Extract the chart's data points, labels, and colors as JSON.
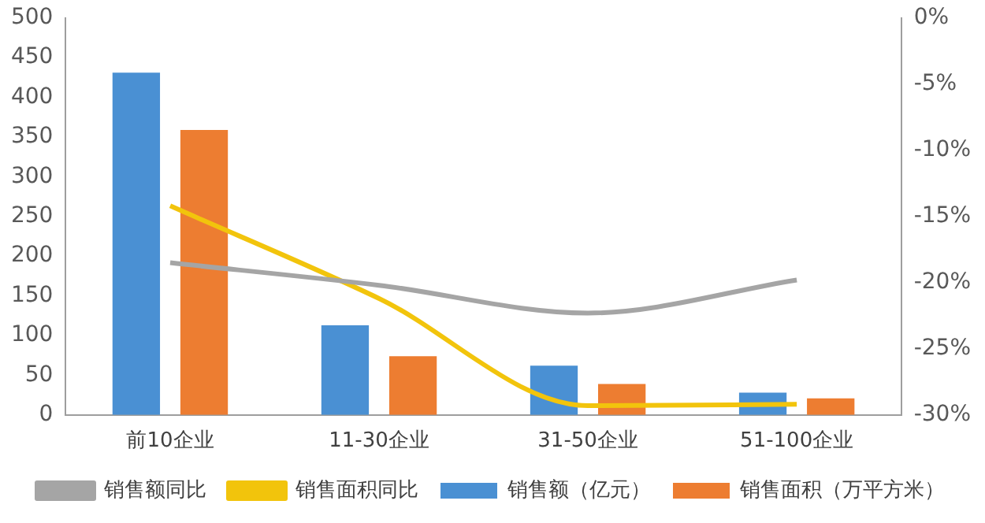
{
  "chart_data": {
    "type": "bar",
    "categories": [
      "前10企业",
      "11-30企业",
      "31-50企业",
      "51-100企业"
    ],
    "series": [
      {
        "name": "销售额（亿元）",
        "color": "#4a90d3",
        "values": [
          431,
          113,
          62,
          28
        ]
      },
      {
        "name": "销售面积（万平方米）",
        "color": "#ed7d31",
        "values": [
          359,
          74,
          39,
          21
        ]
      },
      {
        "name": "销售额同比",
        "type": "line",
        "axis": "y2",
        "color": "#a5a5a5",
        "values": [
          -18.5,
          -20.2,
          -22.3,
          -19.8
        ]
      },
      {
        "name": "销售面积同比",
        "type": "line",
        "axis": "y2",
        "color": "#f2c40c",
        "values": [
          -14.2,
          -21.2,
          -29.3,
          -29.2
        ]
      }
    ],
    "ylim": [
      0,
      500
    ],
    "yticks": [
      0,
      50,
      100,
      150,
      200,
      250,
      300,
      350,
      400,
      450,
      500
    ],
    "y2lim": [
      -30,
      0
    ],
    "y2ticks": [
      {
        "value": -30,
        "label": "-30%"
      },
      {
        "value": -25,
        "label": "-25%"
      },
      {
        "value": -20,
        "label": "-20%"
      },
      {
        "value": -15,
        "label": "-15%"
      },
      {
        "value": -10,
        "label": "-10%"
      },
      {
        "value": -5,
        "label": "-5%"
      },
      {
        "value": 0,
        "label": "0%"
      }
    ],
    "grid": false,
    "legend": "bottom",
    "marker": "none"
  }
}
